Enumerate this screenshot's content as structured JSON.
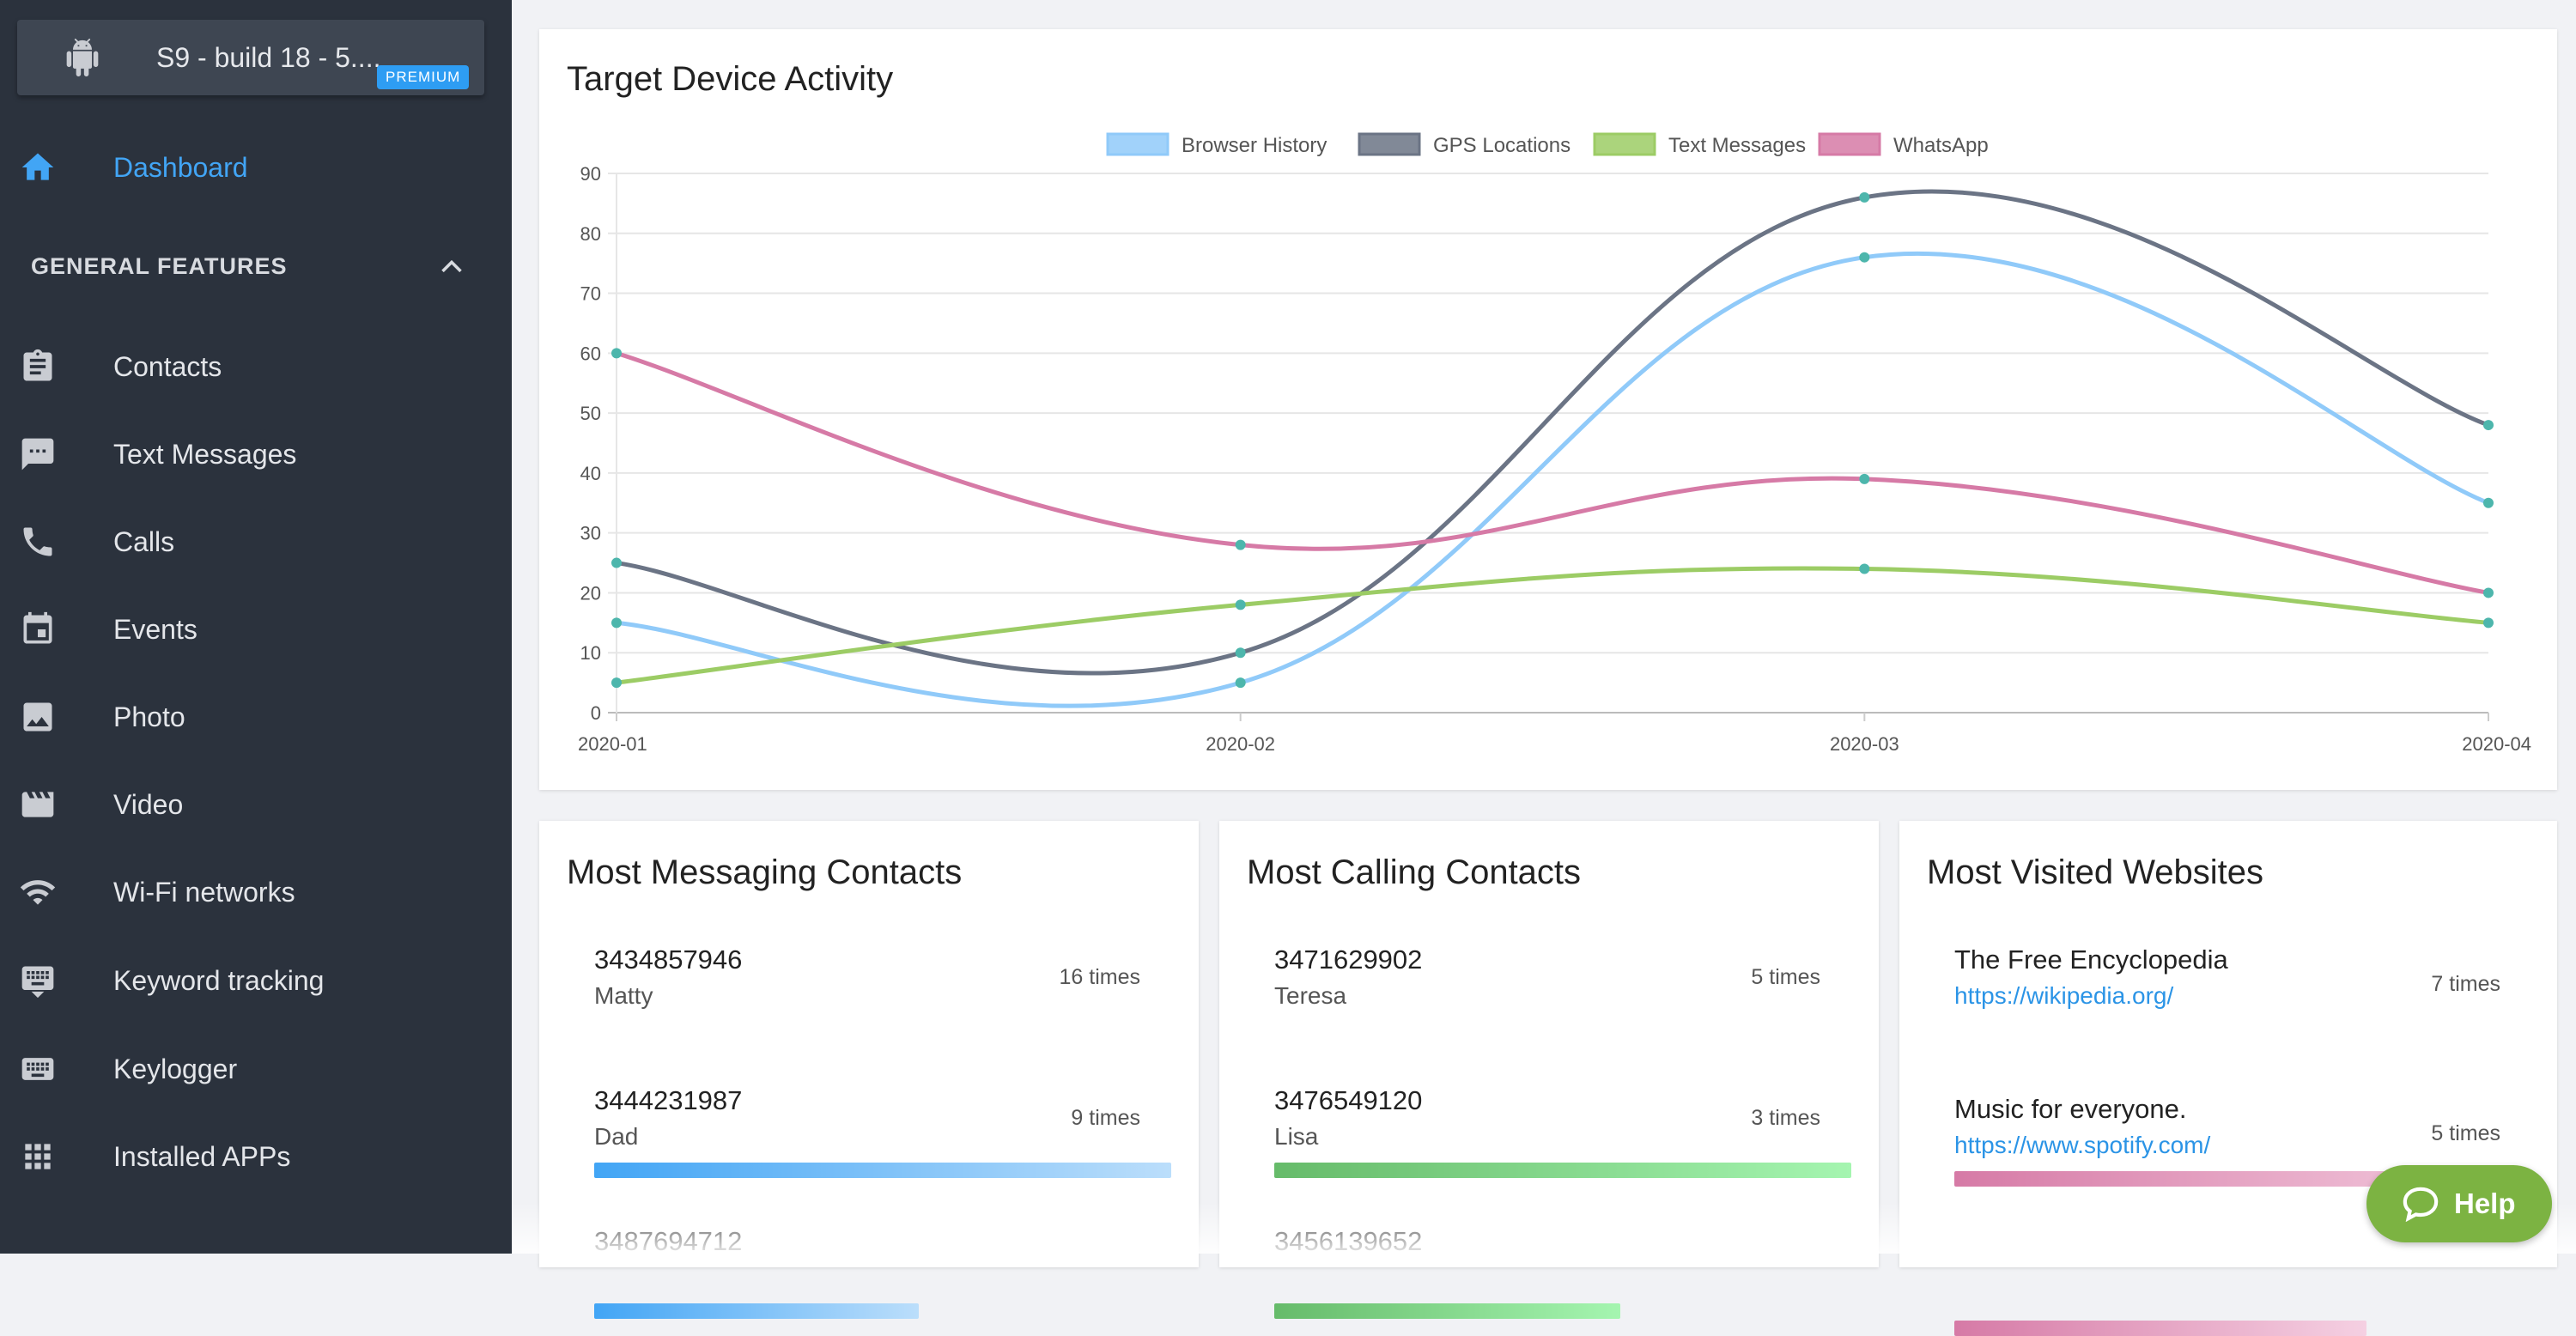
{
  "sidebar": {
    "device": {
      "name": "S9 - build 18 - 5....",
      "badge": "PREMIUM"
    },
    "dashboard": "Dashboard",
    "section_title": "GENERAL FEATURES",
    "items": [
      {
        "label": "Contacts",
        "icon": "clipboard-icon"
      },
      {
        "label": "Text Messages",
        "icon": "message-icon"
      },
      {
        "label": "Calls",
        "icon": "phone-icon"
      },
      {
        "label": "Events",
        "icon": "calendar-icon"
      },
      {
        "label": "Photo",
        "icon": "image-icon"
      },
      {
        "label": "Video",
        "icon": "video-icon"
      },
      {
        "label": "Wi-Fi networks",
        "icon": "wifi-icon"
      },
      {
        "label": "Keyword tracking",
        "icon": "keyboard-icon"
      },
      {
        "label": "Keylogger",
        "icon": "keyboard-icon"
      },
      {
        "label": "Installed APPs",
        "icon": "apps-grid-icon"
      }
    ]
  },
  "activity": {
    "title": "Target Device Activity",
    "chart_data": {
      "type": "line",
      "title": "Target Device Activity",
      "x": [
        "2020-01",
        "2020-02",
        "2020-03",
        "2020-04"
      ],
      "ylim": [
        0,
        90
      ],
      "yticks": [
        "0",
        "10",
        "20",
        "30",
        "40",
        "50",
        "60",
        "70",
        "80",
        "90"
      ],
      "grid": true,
      "legend": "top-center",
      "series": [
        {
          "name": "Browser History",
          "values": [
            15,
            5,
            76,
            35
          ],
          "color": "#90caf9"
        },
        {
          "name": "GPS Locations",
          "values": [
            25,
            10,
            86,
            48
          ],
          "color": "#6b7485"
        },
        {
          "name": "Text Messages",
          "values": [
            5,
            18,
            24,
            15
          ],
          "color": "#9ccc65"
        },
        {
          "name": "WhatsApp",
          "values": [
            60,
            28,
            39,
            20
          ],
          "color": "#d67aa6"
        }
      ],
      "point_color": "#4db6ac"
    }
  },
  "messaging": {
    "title": "Most Messaging Contacts",
    "max": 16,
    "items": [
      {
        "number": "3434857946",
        "name": "Matty",
        "count": "16 times",
        "value": 16
      },
      {
        "number": "3444231987",
        "name": "Dad",
        "count": "9 times",
        "value": 9
      },
      {
        "number": "3487694712",
        "name": "",
        "count": "",
        "value": 0
      }
    ]
  },
  "calling": {
    "title": "Most Calling Contacts",
    "max": 5,
    "items": [
      {
        "number": "3471629902",
        "name": "Teresa",
        "count": "5 times",
        "value": 5
      },
      {
        "number": "3476549120",
        "name": "Lisa",
        "count": "3 times",
        "value": 3
      },
      {
        "number": "3456139652",
        "name": "",
        "count": "",
        "value": 0
      }
    ]
  },
  "websites": {
    "title": "Most Visited Websites",
    "max": 7,
    "items": [
      {
        "title": "The Free Encyclopedia",
        "url": "https://wikipedia.org/",
        "count": "7 times",
        "value": 7
      },
      {
        "title": "Music for everyone.",
        "url": "https://www.spotify.com/",
        "count": "5 times",
        "value": 5
      }
    ]
  },
  "help": {
    "label": "Help"
  },
  "colors": {
    "sidebar": "#2b323d",
    "accent": "#42a5f5",
    "help": "#7cb342"
  }
}
